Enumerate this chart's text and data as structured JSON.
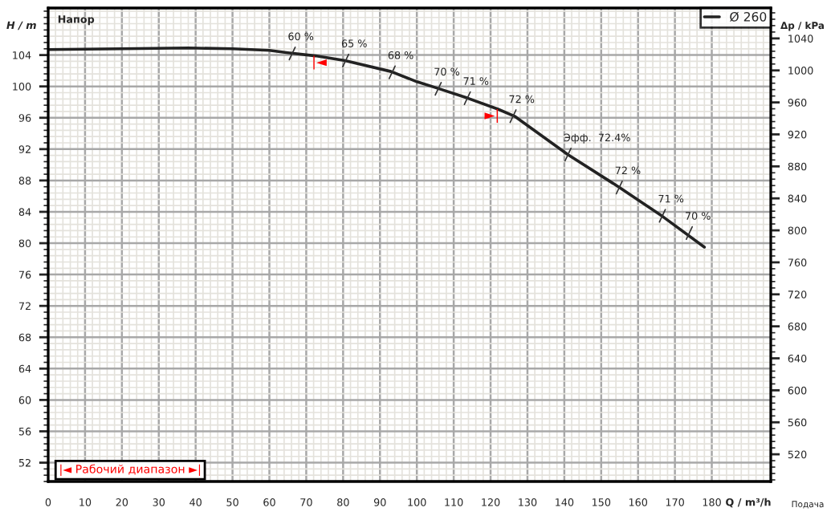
{
  "chart_data": {
    "type": "line",
    "xlabel": "Q / m³/h",
    "ylabel": "H / m",
    "y2label": "Δp / kPa",
    "x": [
      0,
      20,
      38,
      50,
      60,
      65,
      72.5,
      80.5,
      93,
      100,
      105.4,
      113.8,
      122,
      126.5,
      141,
      155,
      166.7,
      178
    ],
    "series": [
      {
        "name": "Ø 260",
        "color": "#222222",
        "values": [
          104.7,
          104.8,
          104.9,
          104.8,
          104.6,
          104.3,
          103.9,
          103.3,
          101.9,
          100.6,
          99.8,
          98.5,
          97.1,
          96.2,
          91.3,
          87.1,
          83.4,
          79.5
        ]
      }
    ],
    "xlim": [
      0,
      196
    ],
    "xticks": [
      0,
      10,
      20,
      30,
      40,
      50,
      60,
      70,
      80,
      90,
      100,
      110,
      120,
      130,
      140,
      150,
      160,
      170,
      180
    ],
    "ylim": [
      49.6,
      110
    ],
    "yticks": [
      52,
      56,
      60,
      64,
      68,
      72,
      76,
      80,
      84,
      88,
      92,
      96,
      100,
      104
    ],
    "y2lim": [
      486,
      1078
    ],
    "y2ticks": [
      520,
      560,
      600,
      640,
      680,
      720,
      760,
      800,
      840,
      880,
      920,
      960,
      1000,
      1040
    ],
    "grid": true,
    "legend": "top right",
    "marker": "none",
    "line_style": "solid",
    "annotations": [
      "Напор",
      "Подача",
      "|◄ Рабочий диапазон ►|",
      {
        "text": "60 %",
        "x": 66.2,
        "y": 104.2
      },
      {
        "text": "65 %",
        "x": 80.7,
        "y": 103.3
      },
      {
        "text": "68 %",
        "x": 93.3,
        "y": 101.8
      },
      {
        "text": "70 %",
        "x": 105.8,
        "y": 99.7
      },
      {
        "text": "71 %",
        "x": 113.7,
        "y": 98.5
      },
      {
        "text": "72 %",
        "x": 126.1,
        "y": 96.2
      },
      {
        "text": "Эфф.  72.4%",
        "x": 141,
        "y": 91.3
      },
      {
        "text": "72 %",
        "x": 154.9,
        "y": 87.1
      },
      {
        "text": "71 %",
        "x": 166.6,
        "y": 83.5
      },
      {
        "text": "70 %",
        "x": 173.9,
        "y": 81.3
      },
      {
        "text": "|◄",
        "x": 72.2,
        "y": 103.9
      },
      {
        "text": "►|",
        "x": 121.7,
        "y": 97.1
      }
    ]
  }
}
